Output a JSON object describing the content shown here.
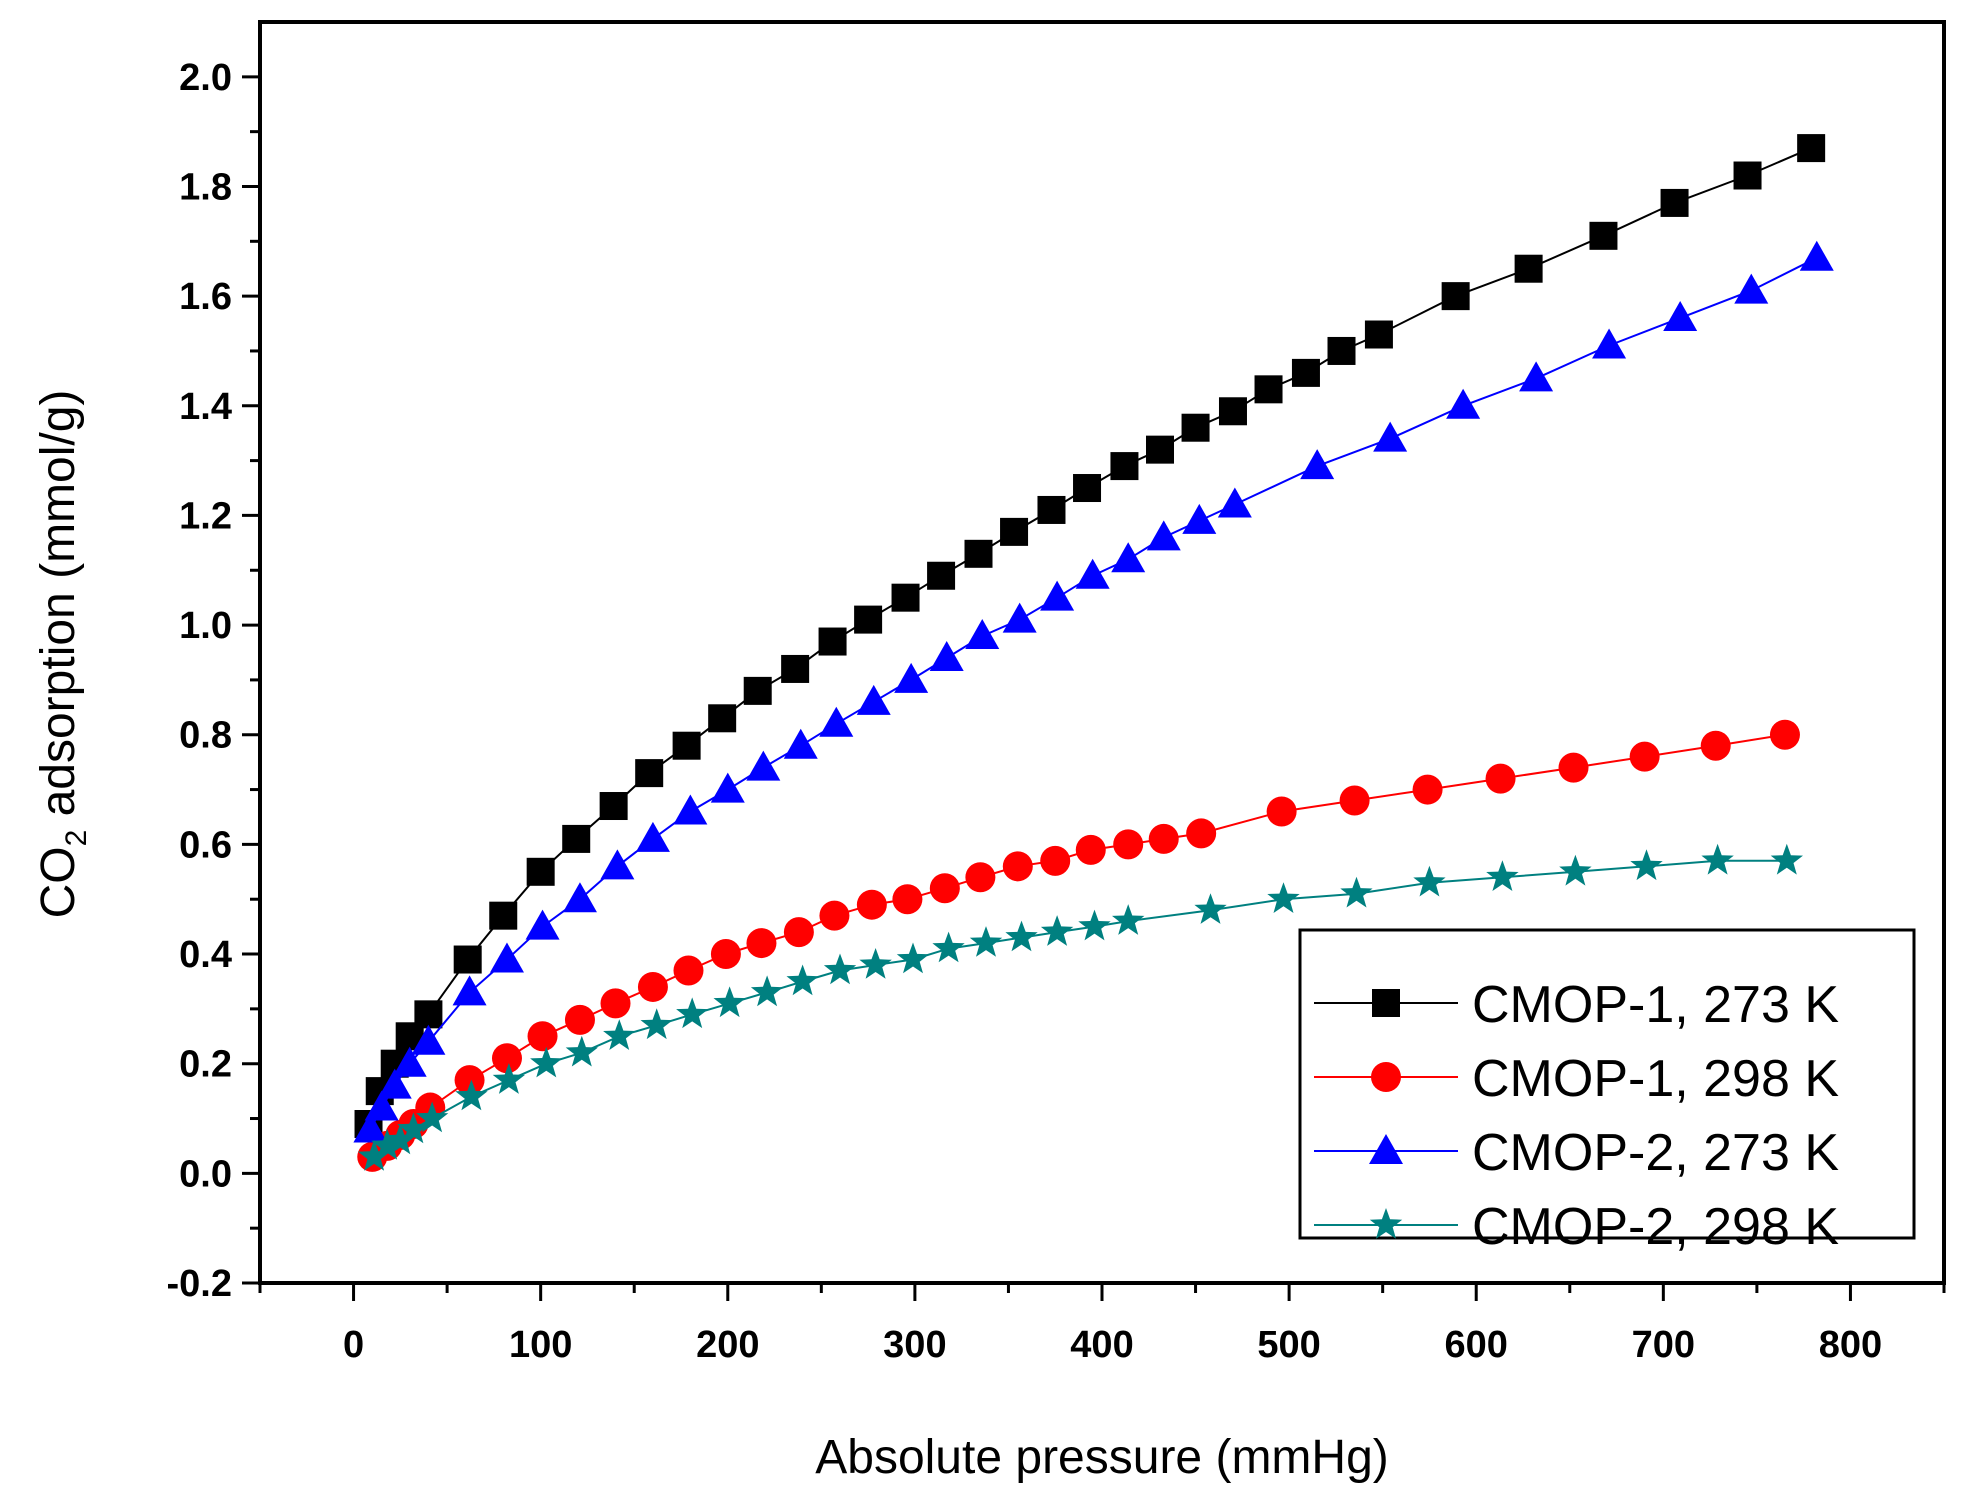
{
  "chart_data": {
    "type": "scatter",
    "title": "",
    "xlabel": "Absolute pressure (mmHg)",
    "ylabel": {
      "prefix": "CO",
      "subscript": "2",
      "suffix": " adsorption (mmol/g)"
    },
    "xlim": [
      -50,
      850
    ],
    "ylim": [
      -0.2,
      2.1
    ],
    "xticks": [
      0,
      100,
      200,
      300,
      400,
      500,
      600,
      700,
      800
    ],
    "yticks": [
      -0.2,
      0.0,
      0.2,
      0.4,
      0.6,
      0.8,
      1.0,
      1.2,
      1.4,
      1.6,
      1.8,
      2.0
    ],
    "xtick_labels": [
      "0",
      "100",
      "200",
      "300",
      "400",
      "500",
      "600",
      "700",
      "800"
    ],
    "ytick_labels": [
      "-0.2",
      "0.0",
      "0.2",
      "0.4",
      "0.6",
      "0.8",
      "1.0",
      "1.2",
      "1.4",
      "1.6",
      "1.8",
      "2.0"
    ],
    "grid": false,
    "legend_position": "bottom-right",
    "series": [
      {
        "name": "CMOP-1, 273 K",
        "color": "#000000",
        "marker": "square",
        "x": [
          8,
          14,
          22,
          30,
          40,
          61,
          80,
          100,
          119,
          139,
          158,
          178,
          197,
          216,
          236,
          256,
          275,
          295,
          314,
          334,
          353,
          373,
          392,
          412,
          431,
          450,
          470,
          489,
          509,
          528,
          548,
          589,
          628,
          668,
          706,
          745,
          779
        ],
        "y": [
          0.09,
          0.15,
          0.2,
          0.25,
          0.29,
          0.39,
          0.47,
          0.55,
          0.61,
          0.67,
          0.73,
          0.78,
          0.83,
          0.88,
          0.92,
          0.97,
          1.01,
          1.05,
          1.09,
          1.13,
          1.17,
          1.21,
          1.25,
          1.29,
          1.32,
          1.36,
          1.39,
          1.43,
          1.46,
          1.5,
          1.53,
          1.6,
          1.65,
          1.71,
          1.77,
          1.82,
          1.87
        ]
      },
      {
        "name": "CMOP-1, 298 K",
        "color": "#ff0000",
        "marker": "circle",
        "x": [
          10,
          18,
          25,
          32,
          41,
          62,
          82,
          101,
          121,
          140,
          160,
          179,
          199,
          218,
          238,
          257,
          277,
          296,
          316,
          335,
          355,
          375,
          394,
          414,
          433,
          453,
          496,
          535,
          574,
          613,
          652,
          690,
          728,
          765
        ],
        "y": [
          0.03,
          0.05,
          0.07,
          0.09,
          0.12,
          0.17,
          0.21,
          0.25,
          0.28,
          0.31,
          0.34,
          0.37,
          0.4,
          0.42,
          0.44,
          0.47,
          0.49,
          0.5,
          0.52,
          0.54,
          0.56,
          0.57,
          0.59,
          0.6,
          0.61,
          0.62,
          0.66,
          0.68,
          0.7,
          0.72,
          0.74,
          0.76,
          0.78,
          0.8
        ]
      },
      {
        "name": "CMOP-2, 273 K",
        "color": "#0000ff",
        "marker": "triangle",
        "x": [
          9,
          15,
          22,
          30,
          40,
          62,
          82,
          101,
          121,
          141,
          160,
          180,
          200,
          219,
          239,
          258,
          278,
          298,
          317,
          336,
          356,
          376,
          395,
          414,
          433,
          452,
          471,
          515,
          554,
          593,
          632,
          671,
          709,
          747,
          782
        ],
        "y": [
          0.08,
          0.12,
          0.16,
          0.2,
          0.24,
          0.33,
          0.39,
          0.45,
          0.5,
          0.56,
          0.61,
          0.66,
          0.7,
          0.74,
          0.78,
          0.82,
          0.86,
          0.9,
          0.94,
          0.98,
          1.01,
          1.05,
          1.09,
          1.12,
          1.16,
          1.19,
          1.22,
          1.29,
          1.34,
          1.4,
          1.45,
          1.51,
          1.56,
          1.61,
          1.67
        ]
      },
      {
        "name": "CMOP-2, 298 K",
        "color": "#008080",
        "marker": "star",
        "x": [
          11,
          18,
          25,
          32,
          42,
          63,
          83,
          103,
          122,
          142,
          162,
          181,
          201,
          221,
          240,
          260,
          279,
          299,
          318,
          338,
          357,
          376,
          396,
          414,
          458,
          497,
          536,
          575,
          614,
          653,
          691,
          729,
          766
        ],
        "y": [
          0.03,
          0.05,
          0.06,
          0.08,
          0.1,
          0.14,
          0.17,
          0.2,
          0.22,
          0.25,
          0.27,
          0.29,
          0.31,
          0.33,
          0.35,
          0.37,
          0.38,
          0.39,
          0.41,
          0.42,
          0.43,
          0.44,
          0.45,
          0.46,
          0.48,
          0.5,
          0.51,
          0.53,
          0.54,
          0.55,
          0.56,
          0.57,
          0.57
        ]
      }
    ]
  }
}
